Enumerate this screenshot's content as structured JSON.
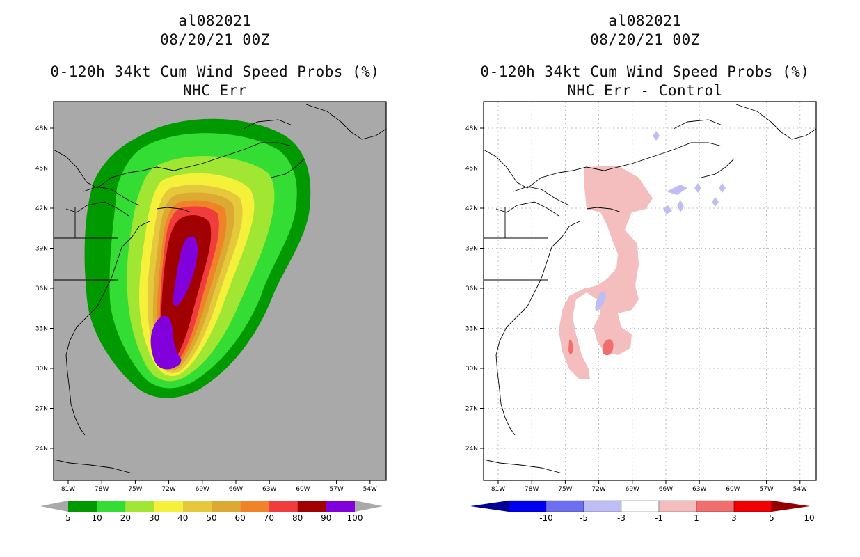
{
  "left": {
    "storm": "al082021",
    "datetime": "08/20/21 00Z",
    "product": "0-120h 34kt Cum Wind Speed Probs (%)",
    "subtitle": "NHC Err",
    "colorbar": {
      "labels": [
        "5",
        "10",
        "20",
        "30",
        "40",
        "50",
        "60",
        "70",
        "80",
        "90",
        "100"
      ],
      "colors": [
        "#009a00",
        "#33dd33",
        "#a0e632",
        "#f5f03a",
        "#e6c83c",
        "#dcaa32",
        "#f08228",
        "#f03c3c",
        "#a00000",
        "#8200dc"
      ]
    }
  },
  "right": {
    "storm": "al082021",
    "datetime": "08/20/21 00Z",
    "product": "0-120h 34kt Cum Wind Speed Probs (%)",
    "subtitle": "NHC Err - Control",
    "colorbar": {
      "labels": [
        "-10",
        "-5",
        "-3",
        "-1",
        "1",
        "3",
        "5",
        "10"
      ],
      "colors": [
        "#000096",
        "#0000f0",
        "#6e6ef0",
        "#bebef5",
        "#ffffff",
        "#f5bebe",
        "#f06e6e",
        "#f00000",
        "#960000"
      ]
    }
  },
  "axes": {
    "lat_labels": [
      "48N",
      "45N",
      "42N",
      "39N",
      "36N",
      "33N",
      "30N",
      "27N",
      "24N"
    ],
    "lon_labels": [
      "81W",
      "78W",
      "75W",
      "72W",
      "69W",
      "66W",
      "63W",
      "60W",
      "57W",
      "54W"
    ]
  },
  "chart_data": [
    {
      "type": "heatmap",
      "title": "0-120h 34kt Cum Wind Speed Probs (%) - NHC Err",
      "storm": "al082021",
      "valid": "08/20/21 00Z",
      "levels": [
        5,
        10,
        20,
        30,
        40,
        50,
        60,
        70,
        80,
        90,
        100
      ],
      "lon_range": [
        -83,
        -52
      ],
      "lat_range": [
        21.5,
        49.8
      ],
      "max_prob_region": "track from near 29N 72W north to near 41N 70W"
    },
    {
      "type": "heatmap",
      "title": "0-120h 34kt Cum Wind Speed Probs (%) - NHC Err - Control",
      "storm": "al082021",
      "valid": "08/20/21 00Z",
      "levels": [
        -10,
        -5,
        -3,
        -1,
        1,
        3,
        5,
        10
      ],
      "lon_range": [
        -83,
        -52
      ],
      "lat_range": [
        21.5,
        49.8
      ]
    }
  ]
}
